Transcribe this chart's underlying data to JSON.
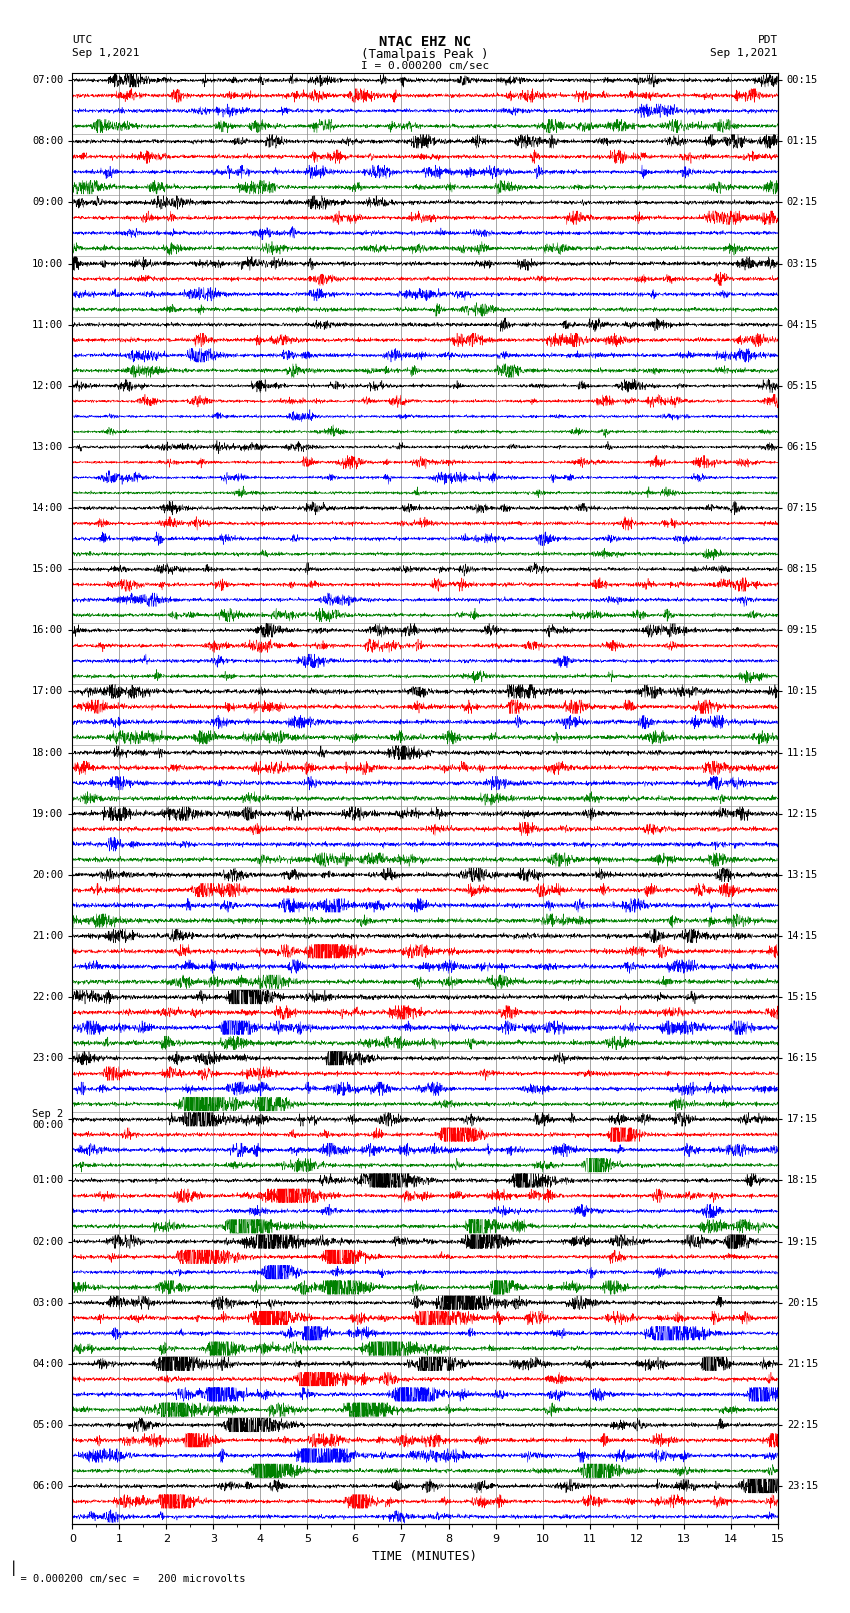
{
  "title_line1": "NTAC EHZ NC",
  "title_line2": "(Tamalpais Peak )",
  "title_line3": "I = 0.000200 cm/sec",
  "left_label_top": "UTC",
  "left_label_date": "Sep 1,2021",
  "right_label_top": "PDT",
  "right_label_date": "Sep 1,2021",
  "bottom_label": "TIME (MINUTES)",
  "scale_label": "= 0.000200 cm/sec =   200 microvolts",
  "trace_colors": [
    "black",
    "red",
    "blue",
    "green"
  ],
  "n_traces": 95,
  "xlim": [
    0,
    15
  ],
  "background_color": "white",
  "grid_color": "#999999",
  "figsize": [
    8.5,
    16.13
  ],
  "dpi": 100,
  "left_hours_utc": [
    7,
    8,
    9,
    10,
    11,
    12,
    13,
    14,
    15,
    16,
    17,
    18,
    19,
    20,
    21,
    22,
    23,
    0,
    1,
    2,
    3,
    4,
    5,
    6
  ],
  "sep2_index": 17,
  "right_hours_pdt": [
    0,
    1,
    2,
    3,
    4,
    5,
    6,
    7,
    8,
    9,
    10,
    11,
    12,
    13,
    14,
    15,
    16,
    17,
    18,
    19,
    20,
    21,
    22,
    23
  ]
}
